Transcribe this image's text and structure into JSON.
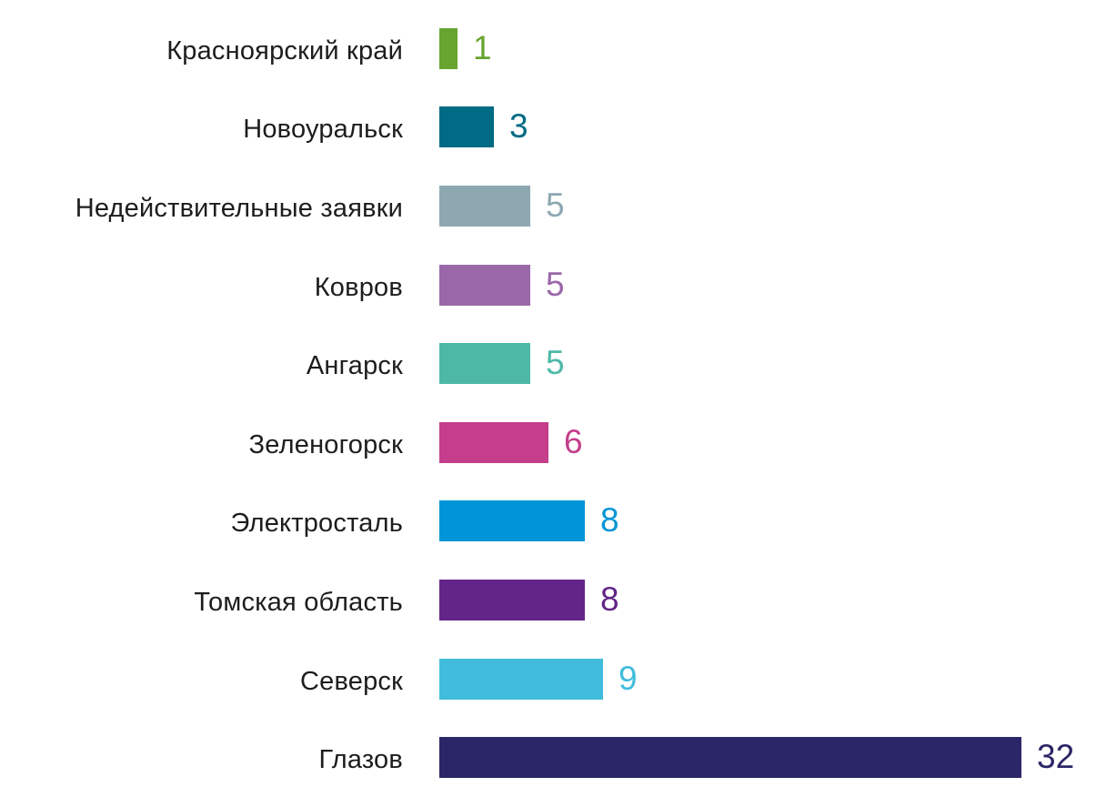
{
  "chart_data": {
    "type": "bar",
    "orientation": "horizontal",
    "title": "",
    "xlabel": "",
    "ylabel": "",
    "grid": false,
    "legend": "none",
    "value_labels": "end-of-bar",
    "xlim": [
      0,
      32
    ],
    "categories": [
      "Красноярский край",
      "Новоуральск",
      "Недействительные заявки",
      "Ковров",
      "Ангарск",
      "Зеленогорск",
      "Электросталь",
      "Томская область",
      "Северск",
      "Глазов"
    ],
    "values": [
      1,
      3,
      5,
      5,
      5,
      6,
      8,
      8,
      9,
      32
    ],
    "colors": [
      "#68a430",
      "#006b84",
      "#8ea8b2",
      "#9a68a8",
      "#4eb8a7",
      "#c43e8c",
      "#0095d6",
      "#632587",
      "#41bcdc",
      "#2b2667"
    ],
    "label_color": "#1d1d1d",
    "background_color": "#ffffff"
  }
}
